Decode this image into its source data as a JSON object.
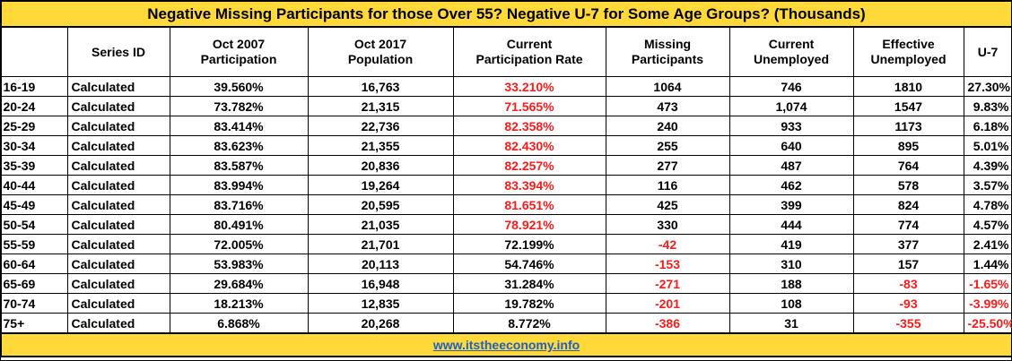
{
  "title": "Negative Missing Participants for those Over 55?  Negative U-7 for Some Age Groups? (Thousands)",
  "columns": [
    {
      "line1": "",
      "line2": ""
    },
    {
      "line1": "Series ID",
      "line2": ""
    },
    {
      "line1": "Oct  2007",
      "line2": "Participation"
    },
    {
      "line1": "Oct 2017",
      "line2": "Population"
    },
    {
      "line1": "Current",
      "line2": "Participation Rate"
    },
    {
      "line1": "Missing",
      "line2": "Participants"
    },
    {
      "line1": "Current",
      "line2": "Unemployed"
    },
    {
      "line1": "Effective",
      "line2": "Unemployed"
    },
    {
      "line1": "U-7",
      "line2": ""
    }
  ],
  "rows": [
    {
      "age": "16-19",
      "series": "Calculated",
      "part2007": "39.560%",
      "pop2017": "16,763",
      "rate": "33.210%",
      "missing": "1064",
      "unemp": "746",
      "eff": "1810",
      "u7": "27.30%"
    },
    {
      "age": "20-24",
      "series": "Calculated",
      "part2007": "73.782%",
      "pop2017": "21,315",
      "rate": "71.565%",
      "missing": "473",
      "unemp": "1,074",
      "eff": "1547",
      "u7": "9.83%"
    },
    {
      "age": "25-29",
      "series": "Calculated",
      "part2007": "83.414%",
      "pop2017": "22,736",
      "rate": "82.358%",
      "missing": "240",
      "unemp": "933",
      "eff": "1173",
      "u7": "6.18%"
    },
    {
      "age": "30-34",
      "series": "Calculated",
      "part2007": "83.623%",
      "pop2017": "21,355",
      "rate": "82.430%",
      "missing": "255",
      "unemp": "640",
      "eff": "895",
      "u7": "5.01%"
    },
    {
      "age": "35-39",
      "series": "Calculated",
      "part2007": "83.587%",
      "pop2017": "20,836",
      "rate": "82.257%",
      "missing": "277",
      "unemp": "487",
      "eff": "764",
      "u7": "4.39%"
    },
    {
      "age": "40-44",
      "series": "Calculated",
      "part2007": "83.994%",
      "pop2017": "19,264",
      "rate": "83.394%",
      "missing": "116",
      "unemp": "462",
      "eff": "578",
      "u7": "3.57%"
    },
    {
      "age": "45-49",
      "series": "Calculated",
      "part2007": "83.716%",
      "pop2017": "20,595",
      "rate": "81.651%",
      "missing": "425",
      "unemp": "399",
      "eff": "824",
      "u7": "4.78%"
    },
    {
      "age": "50-54",
      "series": "Calculated",
      "part2007": "80.491%",
      "pop2017": "21,035",
      "rate": "78.921%",
      "missing": "330",
      "unemp": "444",
      "eff": "774",
      "u7": "4.57%"
    },
    {
      "age": "55-59",
      "series": "Calculated",
      "part2007": "72.005%",
      "pop2017": "21,701",
      "rate": "72.199%",
      "missing": "-42",
      "unemp": "419",
      "eff": "377",
      "u7": "2.41%"
    },
    {
      "age": "60-64",
      "series": "Calculated",
      "part2007": "53.983%",
      "pop2017": "20,113",
      "rate": "54.746%",
      "missing": "-153",
      "unemp": "310",
      "eff": "157",
      "u7": "1.44%"
    },
    {
      "age": "65-69",
      "series": "Calculated",
      "part2007": "29.684%",
      "pop2017": "16,948",
      "rate": "31.284%",
      "missing": "-271",
      "unemp": "188",
      "eff": "-83",
      "u7": "-1.65%"
    },
    {
      "age": "70-74",
      "series": "Calculated",
      "part2007": "18.213%",
      "pop2017": "12,835",
      "rate": "19.782%",
      "missing": "-201",
      "unemp": "108",
      "eff": "-93",
      "u7": "-3.99%"
    },
    {
      "age": "75+",
      "series": "Calculated",
      "part2007": "6.868%",
      "pop2017": "20,268",
      "rate": "8.772%",
      "missing": "-386",
      "unemp": "31",
      "eff": "-355",
      "u7": "-25.50%"
    }
  ],
  "red_rate_rows": [
    0,
    1,
    2,
    3,
    4,
    5,
    6,
    7
  ],
  "colors": {
    "header_bg": "#ffd83a",
    "negative": "#ff1a1a",
    "link": "#1f5fc4"
  },
  "footer": "www.itstheeconomy.info"
}
